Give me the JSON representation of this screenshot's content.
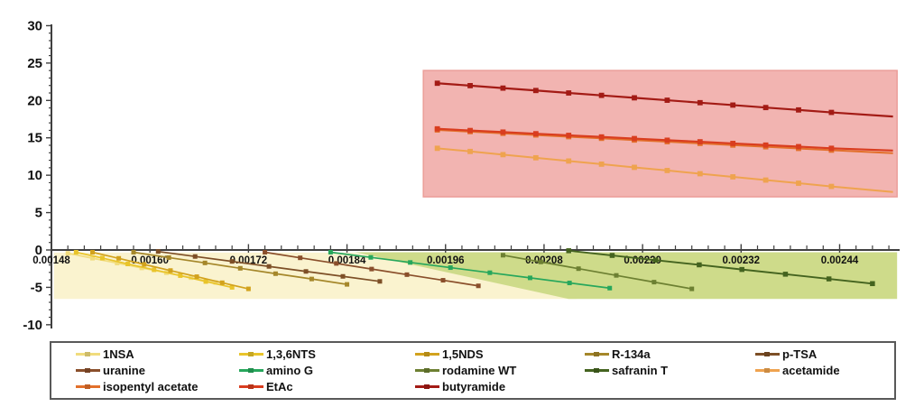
{
  "chart_data": {
    "type": "line",
    "title": "",
    "xlabel": "",
    "ylabel": "",
    "x_axis": {
      "tick_labels": [
        "0.00148",
        "0.00160",
        "0.00172",
        "0.00184",
        "0.00196",
        "0.00208",
        "0.00220",
        "0.00232",
        "0.00244"
      ],
      "tick_values": [
        0.00148,
        0.0016,
        0.00172,
        0.00184,
        0.00196,
        0.00208,
        0.0022,
        0.00232,
        0.00244
      ],
      "minor_step": 2e-05,
      "range": [
        0.00148,
        0.002513
      ]
    },
    "y_axis": {
      "tick_labels": [
        "30",
        "25",
        "20",
        "15",
        "10",
        "5",
        "0",
        "-5",
        "-10"
      ],
      "tick_values": [
        30,
        25,
        20,
        15,
        10,
        5,
        0,
        -5,
        -10
      ],
      "minor_step": 1,
      "range": [
        -10,
        30
      ]
    },
    "grid": false,
    "legend_position": "bottom",
    "regions": [
      {
        "name": "yellow-region",
        "fill": "#FAF3CF",
        "stroke": "none",
        "points": [
          [
            0.001483,
            -0.35
          ],
          [
            0.00185,
            -0.35
          ],
          [
            0.00212,
            -6.55
          ],
          [
            0.001483,
            -6.55
          ]
        ]
      },
      {
        "name": "green-region",
        "fill": "#CEDB8A",
        "stroke": "none",
        "points": [
          [
            0.00185,
            -0.3
          ],
          [
            0.00251,
            -0.3
          ],
          [
            0.00251,
            -6.55
          ],
          [
            0.00211,
            -6.55
          ]
        ]
      },
      {
        "name": "pink-region",
        "fill": "#F2B4B1",
        "stroke": "#EC9E99",
        "points": [
          [
            0.001933,
            24.0
          ],
          [
            0.00251,
            24.0
          ],
          [
            0.00251,
            7.1
          ],
          [
            0.001933,
            7.1
          ]
        ]
      }
    ],
    "series": [
      {
        "name": "1NSA",
        "color": "#F1DC7D",
        "lw": 1.7,
        "ms": 5,
        "points": [
          [
            0.0015,
            -0.45
          ],
          [
            0.00153,
            -1.1
          ],
          [
            0.00156,
            -1.75
          ],
          [
            0.00159,
            -2.4
          ],
          [
            0.00162,
            -3.05
          ],
          [
            0.00165,
            -3.7
          ],
          [
            0.00168,
            -4.35
          ]
        ]
      },
      {
        "name": "1,3,6NTS",
        "color": "#E9C42A",
        "lw": 1.7,
        "ms": 5,
        "points": [
          [
            0.00151,
            -0.3
          ],
          [
            0.001542,
            -1.08
          ],
          [
            0.001573,
            -1.87
          ],
          [
            0.001605,
            -2.65
          ],
          [
            0.001637,
            -3.43
          ],
          [
            0.001668,
            -4.22
          ],
          [
            0.0017,
            -5.0
          ]
        ]
      },
      {
        "name": "1,5NDS",
        "color": "#D2A21D",
        "lw": 1.7,
        "ms": 5,
        "points": [
          [
            0.00153,
            -0.3
          ],
          [
            0.001562,
            -1.12
          ],
          [
            0.001593,
            -1.93
          ],
          [
            0.001625,
            -2.75
          ],
          [
            0.001657,
            -3.57
          ],
          [
            0.001688,
            -4.38
          ],
          [
            0.00172,
            -5.2
          ]
        ]
      },
      {
        "name": "R-134a",
        "color": "#A5872A",
        "lw": 1.7,
        "ms": 5,
        "points": [
          [
            0.00158,
            -0.3
          ],
          [
            0.001623,
            -1.02
          ],
          [
            0.001667,
            -1.73
          ],
          [
            0.00171,
            -2.45
          ],
          [
            0.001753,
            -3.17
          ],
          [
            0.001797,
            -3.88
          ],
          [
            0.00184,
            -4.6
          ]
        ]
      },
      {
        "name": "p-TSA",
        "color": "#7D4F26",
        "lw": 1.7,
        "ms": 5,
        "points": [
          [
            0.00161,
            -0.2
          ],
          [
            0.001655,
            -0.87
          ],
          [
            0.0017,
            -1.53
          ],
          [
            0.001745,
            -2.2
          ],
          [
            0.00179,
            -2.87
          ],
          [
            0.001835,
            -3.53
          ],
          [
            0.00188,
            -4.2
          ]
        ]
      },
      {
        "name": "uranine",
        "color": "#8A4F2B",
        "lw": 1.7,
        "ms": 5,
        "points": [
          [
            0.00174,
            -0.3
          ],
          [
            0.001783,
            -1.05
          ],
          [
            0.001827,
            -1.8
          ],
          [
            0.00187,
            -2.55
          ],
          [
            0.001913,
            -3.3
          ],
          [
            0.001957,
            -4.05
          ],
          [
            0.002,
            -4.8
          ]
        ]
      },
      {
        "name": "amino G",
        "color": "#27A75C",
        "lw": 1.7,
        "ms": 5,
        "points": [
          [
            0.00182,
            -0.3
          ],
          [
            0.001869,
            -0.99
          ],
          [
            0.001917,
            -1.67
          ],
          [
            0.001966,
            -2.36
          ],
          [
            0.002014,
            -3.04
          ],
          [
            0.002063,
            -3.73
          ],
          [
            0.002111,
            -4.41
          ],
          [
            0.00216,
            -5.1
          ]
        ]
      },
      {
        "name": "rodamine WT",
        "color": "#6D8032",
        "lw": 1.7,
        "ms": 5,
        "points": [
          [
            0.00203,
            -0.7
          ],
          [
            0.002076,
            -1.6
          ],
          [
            0.002122,
            -2.5
          ],
          [
            0.002168,
            -3.4
          ],
          [
            0.002214,
            -4.3
          ],
          [
            0.00226,
            -5.2
          ]
        ]
      },
      {
        "name": "safranin T",
        "color": "#44631F",
        "lw": 1.9,
        "ms": 5.5,
        "points": [
          [
            0.00211,
            -0.1
          ],
          [
            0.002163,
            -0.73
          ],
          [
            0.002216,
            -1.36
          ],
          [
            0.002269,
            -1.99
          ],
          [
            0.002321,
            -2.61
          ],
          [
            0.002374,
            -3.24
          ],
          [
            0.002427,
            -3.87
          ],
          [
            0.00248,
            -4.5
          ]
        ]
      },
      {
        "name": "acetamide",
        "color": "#EFA34F",
        "lw": 2.0,
        "ms": 5.8,
        "extend": [
          0.002505,
          7.75
        ],
        "points": [
          [
            0.00195,
            13.6
          ],
          [
            0.00199,
            13.18
          ],
          [
            0.00203,
            12.75
          ],
          [
            0.00207,
            12.33
          ],
          [
            0.00211,
            11.9
          ],
          [
            0.00215,
            11.48
          ],
          [
            0.00219,
            11.05
          ],
          [
            0.00223,
            10.63
          ],
          [
            0.00227,
            10.2
          ],
          [
            0.00231,
            9.78
          ],
          [
            0.00235,
            9.35
          ],
          [
            0.00239,
            8.93
          ],
          [
            0.00243,
            8.5
          ]
        ]
      },
      {
        "name": "isopentyl acetate",
        "color": "#E2702B",
        "lw": 2.0,
        "ms": 5.8,
        "extend": [
          0.002505,
          12.95
        ],
        "points": [
          [
            0.00195,
            16.05
          ],
          [
            0.00199,
            15.83
          ],
          [
            0.00203,
            15.6
          ],
          [
            0.00207,
            15.38
          ],
          [
            0.00211,
            15.15
          ],
          [
            0.00215,
            14.93
          ],
          [
            0.00219,
            14.7
          ],
          [
            0.00223,
            14.48
          ],
          [
            0.00227,
            14.25
          ],
          [
            0.00231,
            14.03
          ],
          [
            0.00235,
            13.8
          ],
          [
            0.00239,
            13.58
          ],
          [
            0.00243,
            13.35
          ]
        ]
      },
      {
        "name": "EtAc",
        "color": "#D93D1F",
        "lw": 2.2,
        "ms": 5.8,
        "extend": [
          0.002505,
          13.3
        ],
        "points": [
          [
            0.00195,
            16.2
          ],
          [
            0.00199,
            15.98
          ],
          [
            0.00203,
            15.77
          ],
          [
            0.00207,
            15.55
          ],
          [
            0.00211,
            15.33
          ],
          [
            0.00215,
            15.12
          ],
          [
            0.00219,
            14.9
          ],
          [
            0.00223,
            14.68
          ],
          [
            0.00227,
            14.47
          ],
          [
            0.00231,
            14.25
          ],
          [
            0.00235,
            14.03
          ],
          [
            0.00239,
            13.82
          ],
          [
            0.00243,
            13.6
          ]
        ]
      },
      {
        "name": "butyramide",
        "color": "#A31B15",
        "lw": 2.2,
        "ms": 5.8,
        "extend": [
          0.002505,
          17.85
        ],
        "points": [
          [
            0.00195,
            22.3
          ],
          [
            0.00199,
            21.98
          ],
          [
            0.00203,
            21.65
          ],
          [
            0.00207,
            21.33
          ],
          [
            0.00211,
            21.0
          ],
          [
            0.00215,
            20.68
          ],
          [
            0.00219,
            20.35
          ],
          [
            0.00223,
            20.03
          ],
          [
            0.00227,
            19.7
          ],
          [
            0.00231,
            19.38
          ],
          [
            0.00235,
            19.05
          ],
          [
            0.00239,
            18.73
          ],
          [
            0.00243,
            18.4
          ]
        ]
      }
    ]
  },
  "legend": {
    "items": [
      {
        "label": "1NSA",
        "color": "#F1DC7D"
      },
      {
        "label": "1,3,6NTS",
        "color": "#E9C42A"
      },
      {
        "label": "1,5NDS",
        "color": "#D2A21D"
      },
      {
        "label": "R-134a",
        "color": "#A5872A"
      },
      {
        "label": "p-TSA",
        "color": "#7D4F26"
      },
      {
        "label": "uranine",
        "color": "#8A4F2B"
      },
      {
        "label": "amino G",
        "color": "#27A75C"
      },
      {
        "label": "rodamine WT",
        "color": "#6D8032"
      },
      {
        "label": "safranin T",
        "color": "#44631F"
      },
      {
        "label": "acetamide",
        "color": "#EFA34F"
      },
      {
        "label": "isopentyl acetate",
        "color": "#E2702B"
      },
      {
        "label": "EtAc",
        "color": "#D93D1F"
      },
      {
        "label": "butyramide",
        "color": "#A31B15"
      }
    ]
  },
  "colors": {
    "axis": "#404040",
    "tick_label": "#111111",
    "pink_region": "#F2B4B1",
    "yellow_region": "#FAF3CF",
    "green_region": "#CEDB8A",
    "background": "#FFFFFF"
  }
}
